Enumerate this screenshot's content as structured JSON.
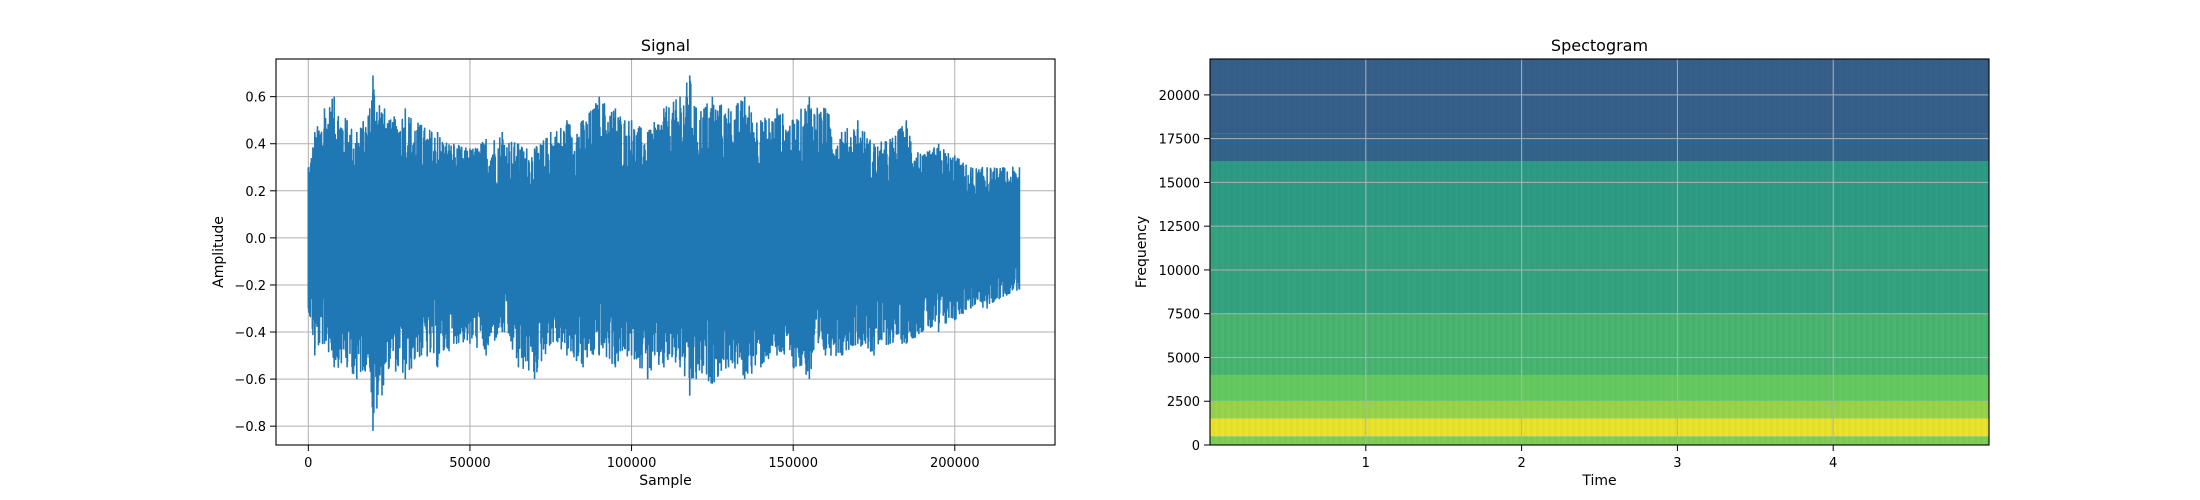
{
  "chart_data": [
    {
      "type": "line",
      "title": "Signal",
      "xlabel": "Sample",
      "ylabel": "Amplitude",
      "xlim": [
        -10000,
        231000
      ],
      "ylim": [
        -0.88,
        0.76
      ],
      "xticks": [
        0,
        50000,
        100000,
        150000,
        200000
      ],
      "xtick_labels": [
        "0",
        "50000",
        "100000",
        "150000",
        "200000"
      ],
      "yticks": [
        0.6,
        0.4,
        0.2,
        0.0,
        -0.2,
        -0.4,
        -0.6,
        -0.8
      ],
      "ytick_labels": [
        "0.6",
        "0.4",
        "0.2",
        "0.0",
        "−0.2",
        "−0.4",
        "−0.6",
        "−0.8"
      ],
      "grid": true,
      "color": "#1f77b4",
      "series": [
        {
          "x": [
            0,
            2000,
            5000,
            8000,
            12000,
            15000,
            19000,
            20000,
            25000,
            30000,
            35000,
            40000,
            45000,
            50000,
            55000,
            60000,
            65000,
            70000,
            75000,
            80000,
            85000,
            90000,
            95000,
            100000,
            105000,
            110000,
            115000,
            118000,
            120000,
            125000,
            130000,
            135000,
            140000,
            145000,
            150000,
            155000,
            160000,
            165000,
            170000,
            175000,
            180000,
            185000,
            190000,
            195000,
            200000,
            205000,
            210000,
            215000,
            220000
          ],
          "upper": [
            0.3,
            0.45,
            0.55,
            0.6,
            0.5,
            0.45,
            0.55,
            0.69,
            0.5,
            0.55,
            0.48,
            0.45,
            0.4,
            0.38,
            0.42,
            0.45,
            0.4,
            0.38,
            0.45,
            0.5,
            0.5,
            0.6,
            0.55,
            0.5,
            0.45,
            0.55,
            0.6,
            0.69,
            0.55,
            0.6,
            0.55,
            0.6,
            0.5,
            0.55,
            0.5,
            0.6,
            0.55,
            0.45,
            0.5,
            0.4,
            0.42,
            0.5,
            0.35,
            0.4,
            0.35,
            0.3,
            0.3,
            0.3,
            0.3
          ],
          "lower": [
            -0.3,
            -0.5,
            -0.45,
            -0.55,
            -0.55,
            -0.6,
            -0.55,
            -0.82,
            -0.55,
            -0.6,
            -0.5,
            -0.55,
            -0.45,
            -0.45,
            -0.5,
            -0.4,
            -0.55,
            -0.6,
            -0.45,
            -0.5,
            -0.55,
            -0.5,
            -0.55,
            -0.5,
            -0.6,
            -0.55,
            -0.55,
            -0.67,
            -0.6,
            -0.62,
            -0.55,
            -0.6,
            -0.55,
            -0.5,
            -0.55,
            -0.6,
            -0.5,
            -0.5,
            -0.45,
            -0.5,
            -0.45,
            -0.45,
            -0.4,
            -0.4,
            -0.35,
            -0.3,
            -0.3,
            -0.25,
            -0.22
          ]
        }
      ]
    },
    {
      "type": "heatmap",
      "title": "Spectogram",
      "xlabel": "Time",
      "ylabel": "Frequency",
      "xlim": [
        0,
        5.0
      ],
      "ylim": [
        0,
        22050
      ],
      "xticks": [
        1,
        2,
        3,
        4
      ],
      "xtick_labels": [
        "1",
        "2",
        "3",
        "4"
      ],
      "yticks": [
        0,
        2500,
        5000,
        7500,
        10000,
        12500,
        15000,
        17500,
        20000
      ],
      "ytick_labels": [
        "0",
        "2500",
        "5000",
        "7500",
        "10000",
        "12500",
        "15000",
        "17500",
        "20000"
      ],
      "grid": true,
      "colormap": "viridis",
      "bands": [
        {
          "from": 17800,
          "to": 22050,
          "level": 0.3
        },
        {
          "from": 16200,
          "to": 17800,
          "level": 0.32
        },
        {
          "from": 12500,
          "to": 16200,
          "level": 0.55
        },
        {
          "from": 7500,
          "to": 12500,
          "level": 0.58
        },
        {
          "from": 4000,
          "to": 7500,
          "level": 0.66
        },
        {
          "from": 2500,
          "to": 4000,
          "level": 0.76
        },
        {
          "from": 1500,
          "to": 2500,
          "level": 0.84
        },
        {
          "from": 500,
          "to": 1500,
          "level": 0.97
        },
        {
          "from": 0,
          "to": 500,
          "level": 0.8
        }
      ]
    }
  ]
}
